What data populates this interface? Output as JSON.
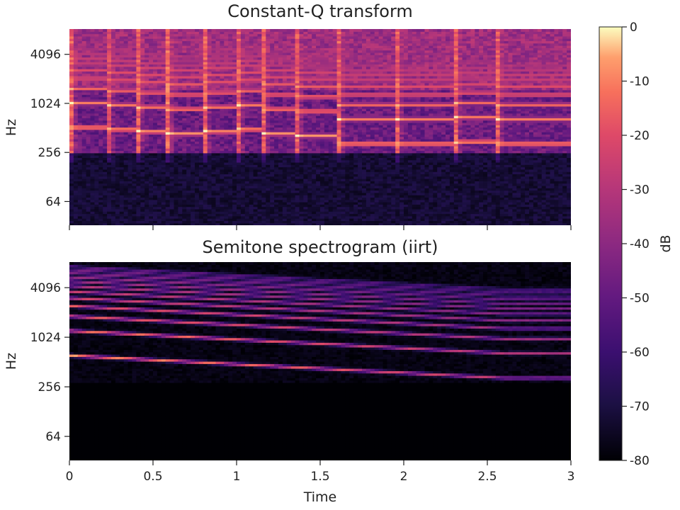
{
  "chart_data": [
    {
      "type": "heatmap",
      "title": "Constant-Q transform",
      "xlabel": "",
      "ylabel": "Hz",
      "x_range": [
        0,
        3
      ],
      "y_scale": "log2",
      "y_range": [
        32.7,
        8372
      ],
      "x_ticks": [
        0,
        0.5,
        1,
        1.5,
        2,
        2.5,
        3
      ],
      "x_tick_labels_shown": false,
      "y_ticks": [
        64,
        256,
        1024,
        4096
      ],
      "y_tick_labels": [
        "64",
        "256",
        "1024",
        "4096"
      ],
      "value_unit": "dB",
      "value_range": [
        -80,
        0
      ],
      "notes": "harmonic stacks with fundamental near 440-550 Hz for t < 1.6 s, then ~330 Hz; broadband onsets visible",
      "segments": [
        {
          "start": 0.0,
          "end": 0.22,
          "f0": 523
        },
        {
          "start": 0.22,
          "end": 0.4,
          "f0": 494
        },
        {
          "start": 0.4,
          "end": 0.58,
          "f0": 466
        },
        {
          "start": 0.58,
          "end": 0.8,
          "f0": 440
        },
        {
          "start": 0.8,
          "end": 1.0,
          "f0": 466
        },
        {
          "start": 1.0,
          "end": 1.15,
          "f0": 494
        },
        {
          "start": 1.15,
          "end": 1.35,
          "f0": 440
        },
        {
          "start": 1.35,
          "end": 1.6,
          "f0": 415
        },
        {
          "start": 1.6,
          "end": 1.95,
          "f0": 330
        },
        {
          "start": 1.95,
          "end": 2.3,
          "f0": 330
        },
        {
          "start": 2.3,
          "end": 2.55,
          "f0": 349
        },
        {
          "start": 2.55,
          "end": 3.0,
          "f0": 330
        }
      ]
    },
    {
      "type": "heatmap",
      "title": "Semitone spectrogram (iirt)",
      "xlabel": "Time",
      "ylabel": "Hz",
      "x_range": [
        0,
        3
      ],
      "y_scale": "log2",
      "y_range": [
        32.7,
        8372
      ],
      "x_ticks": [
        0,
        0.5,
        1,
        1.5,
        2,
        2.5,
        3
      ],
      "x_tick_labels": [
        "0",
        "0.5",
        "1",
        "1.5",
        "2",
        "2.5",
        "3"
      ],
      "y_ticks": [
        64,
        256,
        1024,
        4096
      ],
      "y_tick_labels": [
        "64",
        "256",
        "1024",
        "4096"
      ],
      "value_unit": "dB",
      "value_range": [
        -80,
        0
      ],
      "notes": "sharp semitone bands, descending fundamental glide ~600 Hz to ~330 Hz; silent below ~300 Hz"
    }
  ],
  "colorbar": {
    "label": "dB",
    "colormap": "magma",
    "ticks": [
      0,
      -10,
      -20,
      -30,
      -40,
      -50,
      -60,
      -70,
      -80
    ],
    "tick_labels": [
      "0",
      "-10",
      "-20",
      "-30",
      "-40",
      "-50",
      "-60",
      "-70",
      "-80"
    ]
  }
}
